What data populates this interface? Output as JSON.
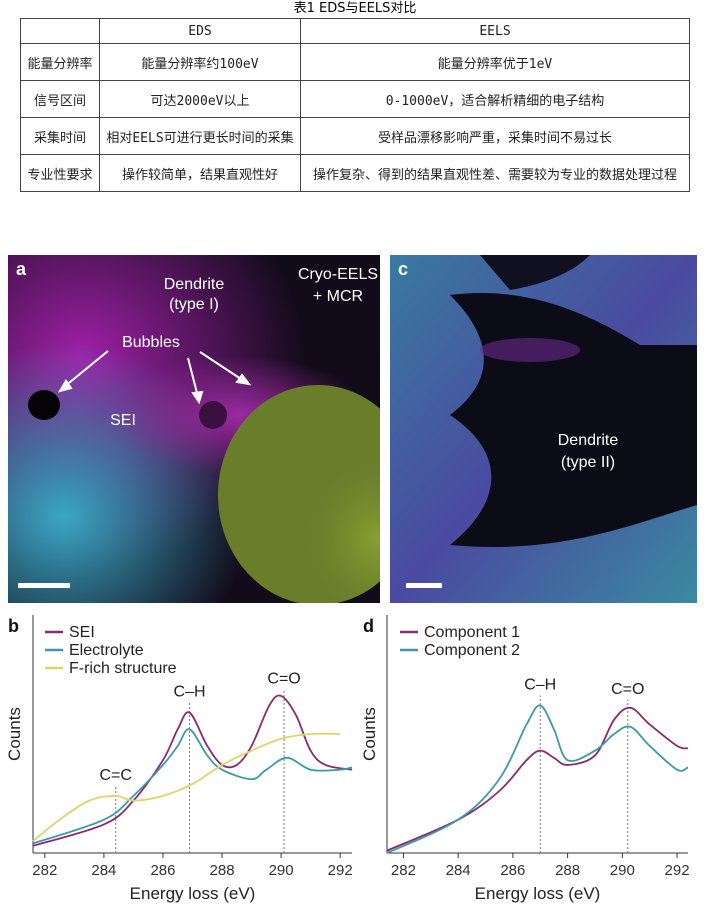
{
  "table": {
    "caption": "表1 EDS与EELS对比",
    "columns": [
      "EDS",
      "EELS"
    ],
    "rows": [
      [
        "能量分辨率",
        "能量分辨率约100eV",
        "能量分辨率优于1eV"
      ],
      [
        "信号区间",
        "可达2000eV以上",
        "0-1000eV，适合解析精细的电子结构"
      ],
      [
        "采集时间",
        "相对EELS可进行更长时间的采集",
        "受样品漂移影响严重，采集时间不易过长"
      ],
      [
        "专业性要求",
        "操作较简单，结果直观性好",
        "操作复杂、得到的结果直观性差、需要较为专业的数据处理过程"
      ]
    ]
  },
  "panels": [
    {
      "label": "a",
      "texts": [
        "Dendrite",
        "(type I)",
        "Cryo-EELS",
        "+ MCR",
        "Bubbles",
        "SEI"
      ]
    },
    {
      "label": "c",
      "texts": [
        "Dendrite",
        "(type II)"
      ]
    }
  ],
  "chart_data": [
    {
      "type": "line",
      "panel_label": "b",
      "xlabel": "Energy loss (eV)",
      "ylabel": "Counts",
      "xlim": [
        281.6,
        292.4
      ],
      "xticks": [
        282,
        284,
        286,
        288,
        290,
        292
      ],
      "ylim": [
        0,
        100
      ],
      "series": [
        {
          "name": "SEI",
          "color": "#8b2a6e",
          "x": [
            281.6,
            284,
            285,
            286,
            286.5,
            286.9,
            287.5,
            288,
            288.5,
            289,
            289.6,
            290,
            290.5,
            291,
            291.5,
            292.4
          ],
          "values": [
            3,
            12,
            22,
            39,
            52,
            59,
            45,
            37,
            37,
            45,
            62,
            66,
            58,
            43,
            37,
            35
          ]
        },
        {
          "name": "Electrolyte",
          "color": "#3a9aa8",
          "x": [
            281.6,
            284,
            285,
            286,
            286.5,
            286.9,
            287.5,
            288,
            289,
            289.5,
            290.2,
            291,
            292,
            292.4
          ],
          "values": [
            4,
            14,
            24,
            37,
            45,
            52,
            41,
            35,
            31,
            35,
            40,
            35,
            35,
            36
          ]
        },
        {
          "name": "F-rich structure",
          "color": "#e0d36a",
          "x": [
            281.6,
            282.5,
            283.5,
            284.4,
            285,
            286,
            287,
            288,
            289,
            290,
            291,
            292
          ],
          "values": [
            5,
            14,
            22,
            24,
            22,
            24,
            29,
            37,
            43,
            48,
            50,
            50
          ]
        }
      ],
      "annotations": [
        {
          "label": "C=C",
          "x": 284.4
        },
        {
          "label": "C–H",
          "x": 286.9
        },
        {
          "label": "C=O",
          "x": 290.1
        }
      ]
    },
    {
      "type": "line",
      "panel_label": "d",
      "xlabel": "Energy loss (eV)",
      "ylabel": "Counts",
      "xlim": [
        281.4,
        292.4
      ],
      "xticks": [
        282,
        284,
        286,
        288,
        290,
        292
      ],
      "ylim": [
        0,
        100
      ],
      "series": [
        {
          "name": "Component 1",
          "color": "#8b2a6e",
          "x": [
            281.4,
            284,
            285.5,
            286.5,
            287,
            287.5,
            288,
            289,
            289.7,
            290.3,
            291,
            292,
            292.4
          ],
          "values": [
            1,
            14,
            26,
            39,
            43,
            40,
            37,
            41,
            56,
            61,
            54,
            45,
            44
          ]
        },
        {
          "name": "Component 2",
          "color": "#3a9aa8",
          "x": [
            281.4,
            284,
            285.5,
            286.5,
            287,
            287.5,
            288,
            289,
            289.7,
            290.3,
            291,
            292,
            292.4
          ],
          "values": [
            0,
            14,
            31,
            54,
            62,
            52,
            39,
            43,
            50,
            53,
            45,
            35,
            36
          ]
        }
      ],
      "annotations": [
        {
          "label": "C–H",
          "x": 287
        },
        {
          "label": "C=O",
          "x": 290.2
        }
      ]
    }
  ]
}
